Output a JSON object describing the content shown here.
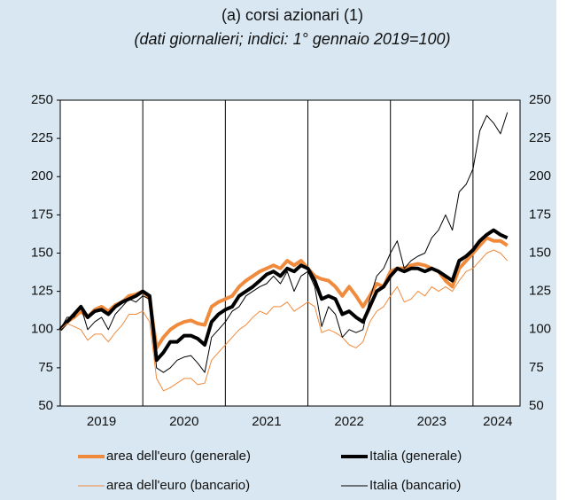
{
  "chart_data": {
    "type": "line",
    "title": "(a) corsi azionari (1)",
    "subtitle": "(dati giornalieri; indici: 1° gennaio 2019=100)",
    "x": [
      2019,
      2019.083,
      2019.167,
      2019.25,
      2019.333,
      2019.417,
      2019.5,
      2019.583,
      2019.667,
      2019.75,
      2019.833,
      2019.917,
      2020,
      2020.083,
      2020.167,
      2020.25,
      2020.333,
      2020.417,
      2020.5,
      2020.583,
      2020.667,
      2020.75,
      2020.833,
      2020.917,
      2021,
      2021.083,
      2021.167,
      2021.25,
      2021.333,
      2021.417,
      2021.5,
      2021.583,
      2021.667,
      2021.75,
      2021.833,
      2021.917,
      2022,
      2022.083,
      2022.167,
      2022.25,
      2022.333,
      2022.417,
      2022.5,
      2022.583,
      2022.667,
      2022.75,
      2022.833,
      2022.917,
      2023,
      2023.083,
      2023.167,
      2023.25,
      2023.333,
      2023.417,
      2023.5,
      2023.583,
      2023.667,
      2023.75,
      2023.833,
      2023.917,
      2024,
      2024.083,
      2024.167,
      2024.25,
      2024.333,
      2024.417
    ],
    "series": [
      {
        "name": "area dell'euro (generale)",
        "color": "#f08a3c",
        "width": 4,
        "values": [
          100,
          105,
          108,
          112,
          108,
          113,
          115,
          112,
          116,
          118,
          122,
          123,
          125,
          120,
          88,
          95,
          100,
          103,
          105,
          106,
          104,
          103,
          115,
          118,
          120,
          122,
          128,
          132,
          135,
          138,
          140,
          142,
          140,
          145,
          142,
          145,
          140,
          135,
          133,
          132,
          128,
          122,
          128,
          122,
          115,
          122,
          130,
          128,
          138,
          140,
          140,
          142,
          143,
          142,
          140,
          138,
          132,
          128,
          140,
          145,
          150,
          155,
          160,
          158,
          158,
          155
        ]
      },
      {
        "name": "Italia (generale)",
        "color": "#000000",
        "width": 4,
        "values": [
          100,
          105,
          110,
          115,
          108,
          112,
          113,
          110,
          115,
          118,
          120,
          122,
          125,
          122,
          80,
          85,
          92,
          92,
          96,
          96,
          94,
          90,
          105,
          110,
          113,
          115,
          122,
          125,
          128,
          132,
          136,
          138,
          135,
          140,
          138,
          142,
          140,
          132,
          120,
          122,
          120,
          110,
          112,
          108,
          105,
          115,
          125,
          128,
          135,
          140,
          138,
          140,
          140,
          138,
          140,
          138,
          135,
          132,
          145,
          148,
          152,
          158,
          162,
          165,
          162,
          160
        ]
      },
      {
        "name": "area dell'euro (bancario)",
        "color": "#f08a3c",
        "width": 1,
        "values": [
          100,
          104,
          102,
          100,
          93,
          97,
          97,
          92,
          98,
          103,
          110,
          110,
          112,
          105,
          68,
          60,
          62,
          65,
          68,
          68,
          64,
          65,
          80,
          85,
          90,
          95,
          100,
          103,
          108,
          112,
          110,
          115,
          115,
          118,
          112,
          115,
          118,
          115,
          98,
          100,
          98,
          95,
          90,
          88,
          92,
          105,
          112,
          115,
          122,
          128,
          118,
          120,
          125,
          122,
          128,
          125,
          128,
          125,
          132,
          138,
          140,
          145,
          150,
          152,
          150,
          145
        ]
      },
      {
        "name": "Italia (bancario)",
        "color": "#000000",
        "width": 1,
        "values": [
          100,
          108,
          108,
          115,
          100,
          105,
          108,
          100,
          110,
          115,
          120,
          118,
          122,
          120,
          75,
          72,
          75,
          80,
          82,
          83,
          78,
          72,
          95,
          100,
          105,
          112,
          115,
          122,
          125,
          128,
          130,
          135,
          130,
          138,
          125,
          135,
          138,
          128,
          102,
          115,
          110,
          95,
          100,
          98,
          100,
          120,
          135,
          140,
          150,
          158,
          140,
          145,
          148,
          150,
          160,
          165,
          175,
          165,
          190,
          195,
          205,
          230,
          240,
          235,
          228,
          242
        ]
      }
    ],
    "xlim": [
      2019,
      2024.57
    ],
    "xticks": [
      {
        "value": 2019.5,
        "label": "2019"
      },
      {
        "value": 2020.5,
        "label": "2020"
      },
      {
        "value": 2021.5,
        "label": "2021"
      },
      {
        "value": 2022.5,
        "label": "2022"
      },
      {
        "value": 2023.5,
        "label": "2023"
      },
      {
        "value": 2024.3,
        "label": "2024"
      }
    ],
    "xgrid": [
      2020,
      2021,
      2022,
      2023,
      2024
    ],
    "ylim": [
      50,
      250
    ],
    "yticks": [
      50,
      75,
      100,
      125,
      150,
      175,
      200,
      225,
      250
    ]
  }
}
